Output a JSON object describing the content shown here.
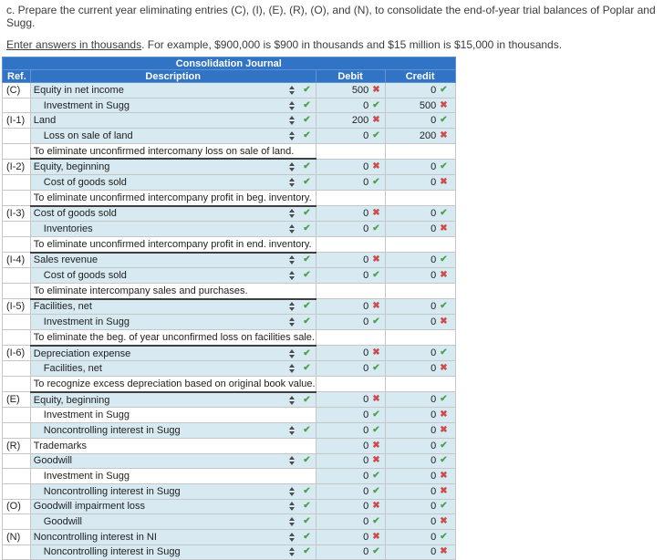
{
  "page": {
    "instruction1": "c. Prepare the current year eliminating entries (C), (I), (E), (R), (O), and (N), to consolidate the end-of-year trial balances of Poplar and Sugg.",
    "instruction2_underline": "Enter answers in thousands",
    "instruction2_rest": ". For example, $900,000 is $900 in thousands and $15 million is $15,000 in thousands."
  },
  "table": {
    "title": "Consolidation Journal",
    "columns": [
      "Ref.",
      "Description",
      "Debit",
      "Credit"
    ],
    "colors": {
      "header_blue": "#3173c5",
      "row_blue": "#d7e9f1",
      "correct_green": "#4da14d",
      "incorrect_red": "#cf4a4a"
    },
    "rows": [
      {
        "type": "entry",
        "ref": "(C)",
        "desc": "Equity in net income",
        "indent": false,
        "select": true,
        "debit": "500",
        "debit_ok": false,
        "credit": "0",
        "credit_ok": true
      },
      {
        "type": "entry",
        "ref": "",
        "desc": "Investment in Sugg",
        "indent": true,
        "select": true,
        "debit": "0",
        "debit_ok": true,
        "credit": "500",
        "credit_ok": false
      },
      {
        "type": "entry",
        "ref": "(I-1)",
        "desc": "Land",
        "indent": false,
        "select": true,
        "debit": "200",
        "debit_ok": false,
        "credit": "0",
        "credit_ok": true
      },
      {
        "type": "entry",
        "ref": "",
        "desc": "Loss on sale of land",
        "indent": true,
        "select": true,
        "debit": "0",
        "debit_ok": true,
        "credit": "200",
        "credit_ok": false
      },
      {
        "type": "note",
        "text": "To eliminate unconfirmed intercomany loss on sale of land."
      },
      {
        "type": "entry",
        "ref": "(I-2)",
        "desc": "Equity, beginning",
        "indent": false,
        "select": true,
        "debit": "0",
        "debit_ok": false,
        "credit": "0",
        "credit_ok": true
      },
      {
        "type": "entry",
        "ref": "",
        "desc": "Cost of goods sold",
        "indent": true,
        "select": true,
        "debit": "0",
        "debit_ok": true,
        "credit": "0",
        "credit_ok": false
      },
      {
        "type": "note",
        "text": "To eliminate unconfirmed intercompany profit in beg. inventory."
      },
      {
        "type": "entry",
        "ref": "(I-3)",
        "desc": "Cost of goods sold",
        "indent": false,
        "select": true,
        "debit": "0",
        "debit_ok": false,
        "credit": "0",
        "credit_ok": true
      },
      {
        "type": "entry",
        "ref": "",
        "desc": "Inventories",
        "indent": true,
        "select": true,
        "debit": "0",
        "debit_ok": true,
        "credit": "0",
        "credit_ok": false
      },
      {
        "type": "note",
        "text": "To eliminate unconfirmed intercompany profit in end. inventory."
      },
      {
        "type": "entry",
        "ref": "(I-4)",
        "desc": "Sales revenue",
        "indent": false,
        "select": true,
        "debit": "0",
        "debit_ok": false,
        "credit": "0",
        "credit_ok": true
      },
      {
        "type": "entry",
        "ref": "",
        "desc": "Cost of goods sold",
        "indent": true,
        "select": true,
        "debit": "0",
        "debit_ok": true,
        "credit": "0",
        "credit_ok": false
      },
      {
        "type": "note",
        "text": "To eliminate intercompany sales and purchases."
      },
      {
        "type": "entry",
        "ref": "(I-5)",
        "desc": "Facilities, net",
        "indent": false,
        "select": true,
        "debit": "0",
        "debit_ok": false,
        "credit": "0",
        "credit_ok": true
      },
      {
        "type": "entry",
        "ref": "",
        "desc": "Investment in Sugg",
        "indent": true,
        "select": true,
        "debit": "0",
        "debit_ok": true,
        "credit": "0",
        "credit_ok": false
      },
      {
        "type": "note",
        "text": "To eliminate the beg. of year unconfirmed loss on facilities sale."
      },
      {
        "type": "entry",
        "ref": "(I-6)",
        "desc": "Depreciation expense",
        "indent": false,
        "select": true,
        "debit": "0",
        "debit_ok": false,
        "credit": "0",
        "credit_ok": true
      },
      {
        "type": "entry",
        "ref": "",
        "desc": "Facilities, net",
        "indent": true,
        "select": true,
        "debit": "0",
        "debit_ok": true,
        "credit": "0",
        "credit_ok": false
      },
      {
        "type": "note",
        "text": "To recognize excess depreciation based on original book value."
      },
      {
        "type": "entry",
        "ref": "(E)",
        "desc": "Equity, beginning",
        "indent": false,
        "select": true,
        "debit": "0",
        "debit_ok": false,
        "credit": "0",
        "credit_ok": true
      },
      {
        "type": "entry",
        "ref": "",
        "desc": "Investment in Sugg",
        "indent": true,
        "select": false,
        "debit": "0",
        "debit_ok": true,
        "credit": "0",
        "credit_ok": false
      },
      {
        "type": "entry",
        "ref": "",
        "desc": "Noncontrolling interest in Sugg",
        "indent": true,
        "select": true,
        "debit": "0",
        "debit_ok": true,
        "credit": "0",
        "credit_ok": false
      },
      {
        "type": "entry",
        "ref": "(R)",
        "desc": "Trademarks",
        "indent": false,
        "select": false,
        "debit": "0",
        "debit_ok": false,
        "credit": "0",
        "credit_ok": true
      },
      {
        "type": "entry",
        "ref": "",
        "desc": "Goodwill",
        "indent": false,
        "select": true,
        "debit": "0",
        "debit_ok": false,
        "credit": "0",
        "credit_ok": true
      },
      {
        "type": "entry",
        "ref": "",
        "desc": "Investment in Sugg",
        "indent": true,
        "select": false,
        "debit": "0",
        "debit_ok": true,
        "credit": "0",
        "credit_ok": false
      },
      {
        "type": "entry",
        "ref": "",
        "desc": "Noncontrolling interest in Sugg",
        "indent": true,
        "select": true,
        "debit": "0",
        "debit_ok": true,
        "credit": "0",
        "credit_ok": false
      },
      {
        "type": "entry",
        "ref": "(O)",
        "desc": "Goodwill impairment loss",
        "indent": false,
        "select": true,
        "debit": "0",
        "debit_ok": false,
        "credit": "0",
        "credit_ok": true
      },
      {
        "type": "entry",
        "ref": "",
        "desc": "Goodwill",
        "indent": true,
        "select": true,
        "debit": "0",
        "debit_ok": true,
        "credit": "0",
        "credit_ok": false
      },
      {
        "type": "entry",
        "ref": "(N)",
        "desc": "Noncontrolling interest in NI",
        "indent": false,
        "select": true,
        "debit": "0",
        "debit_ok": false,
        "credit": "0",
        "credit_ok": true
      },
      {
        "type": "entry",
        "ref": "",
        "desc": "Noncontrolling interest in Sugg",
        "indent": true,
        "select": true,
        "debit": "0",
        "debit_ok": true,
        "credit": "0",
        "credit_ok": false
      }
    ]
  }
}
